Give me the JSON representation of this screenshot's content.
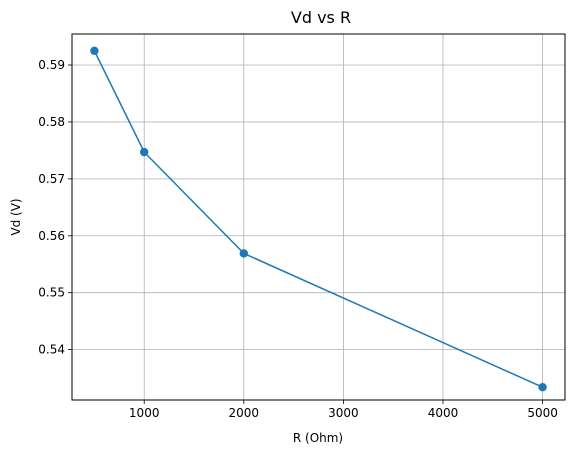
{
  "chart_data": {
    "type": "line",
    "title": "Vd vs R",
    "xlabel": "R (Ohm)",
    "ylabel": "Vd (V)",
    "x": [
      500,
      1000,
      2000,
      5000
    ],
    "series": [
      {
        "values": [
          0.5925,
          0.5747,
          0.5569,
          0.5334
        ],
        "color": "#1f77b4",
        "marker": "circle"
      }
    ],
    "xlim": [
      275,
      5225
    ],
    "ylim": [
      0.53115,
      0.59545
    ],
    "xticks": [
      1000,
      2000,
      3000,
      4000,
      5000
    ],
    "xtick_labels": [
      "1000",
      "2000",
      "3000",
      "4000",
      "5000"
    ],
    "yticks": [
      0.54,
      0.55,
      0.56,
      0.57,
      0.58,
      0.59
    ],
    "ytick_labels": [
      "0.54",
      "0.55",
      "0.56",
      "0.57",
      "0.58",
      "0.59"
    ],
    "grid": true,
    "legend": false
  }
}
